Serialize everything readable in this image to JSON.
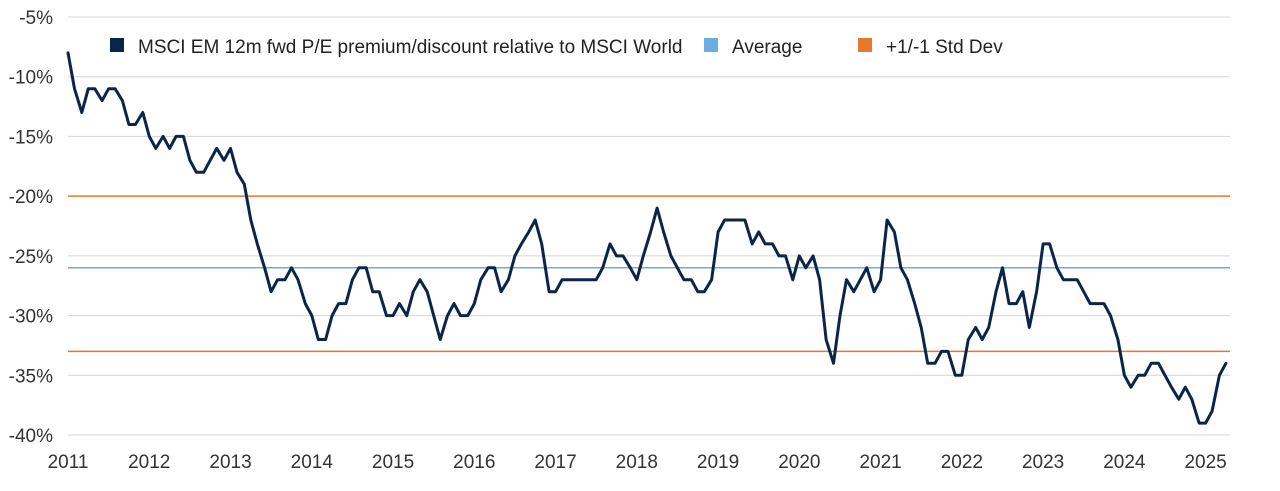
{
  "chart_data": {
    "type": "line",
    "title": "",
    "xlabel": "",
    "ylabel": "",
    "xlim": [
      2011.0,
      2025.3
    ],
    "ylim": [
      -40,
      -5
    ],
    "x_ticks": [
      "2011",
      "2012",
      "2013",
      "2014",
      "2015",
      "2016",
      "2017",
      "2018",
      "2019",
      "2020",
      "2021",
      "2022",
      "2023",
      "2024",
      "2025"
    ],
    "y_ticks": [
      "-5%",
      "-10%",
      "-15%",
      "-20%",
      "-25%",
      "-30%",
      "-35%",
      "-40%"
    ],
    "grid": "horizontal",
    "legend_position": "top",
    "series": [
      {
        "name": "MSCI EM 12m fwd P/E premium/discount relative to MSCI World",
        "color": "#0b2548",
        "x": [
          2011.0,
          2011.08,
          2011.17,
          2011.25,
          2011.33,
          2011.42,
          2011.5,
          2011.58,
          2011.67,
          2011.75,
          2011.83,
          2011.92,
          2012.0,
          2012.08,
          2012.17,
          2012.25,
          2012.33,
          2012.42,
          2012.5,
          2012.58,
          2012.67,
          2012.75,
          2012.83,
          2012.92,
          2013.0,
          2013.08,
          2013.17,
          2013.25,
          2013.33,
          2013.42,
          2013.5,
          2013.58,
          2013.67,
          2013.75,
          2013.83,
          2013.92,
          2014.0,
          2014.08,
          2014.17,
          2014.25,
          2014.33,
          2014.42,
          2014.5,
          2014.58,
          2014.67,
          2014.75,
          2014.83,
          2014.92,
          2015.0,
          2015.08,
          2015.17,
          2015.25,
          2015.33,
          2015.42,
          2015.5,
          2015.58,
          2015.67,
          2015.75,
          2015.83,
          2015.92,
          2016.0,
          2016.08,
          2016.17,
          2016.25,
          2016.33,
          2016.42,
          2016.5,
          2016.58,
          2016.67,
          2016.75,
          2016.83,
          2016.92,
          2017.0,
          2017.08,
          2017.17,
          2017.25,
          2017.33,
          2017.42,
          2017.5,
          2017.58,
          2017.67,
          2017.75,
          2017.83,
          2017.92,
          2018.0,
          2018.08,
          2018.17,
          2018.25,
          2018.33,
          2018.42,
          2018.5,
          2018.58,
          2018.67,
          2018.75,
          2018.83,
          2018.92,
          2019.0,
          2019.08,
          2019.17,
          2019.25,
          2019.33,
          2019.42,
          2019.5,
          2019.58,
          2019.67,
          2019.75,
          2019.83,
          2019.92,
          2020.0,
          2020.08,
          2020.17,
          2020.25,
          2020.33,
          2020.42,
          2020.5,
          2020.58,
          2020.67,
          2020.75,
          2020.83,
          2020.92,
          2021.0,
          2021.08,
          2021.17,
          2021.25,
          2021.33,
          2021.42,
          2021.5,
          2021.58,
          2021.67,
          2021.75,
          2021.83,
          2021.92,
          2022.0,
          2022.08,
          2022.17,
          2022.25,
          2022.33,
          2022.42,
          2022.5,
          2022.58,
          2022.67,
          2022.75,
          2022.83,
          2022.92,
          2023.0,
          2023.08,
          2023.17,
          2023.25,
          2023.33,
          2023.42,
          2023.5,
          2023.58,
          2023.67,
          2023.75,
          2023.83,
          2023.92,
          2024.0,
          2024.08,
          2024.17,
          2024.25,
          2024.33,
          2024.42,
          2024.5,
          2024.58,
          2024.67,
          2024.75,
          2024.83,
          2024.92,
          2025.0,
          2025.08,
          2025.17,
          2025.25
        ],
        "values": [
          -8,
          -11,
          -13,
          -11,
          -11,
          -12,
          -11,
          -11,
          -12,
          -14,
          -14,
          -13,
          -15,
          -16,
          -15,
          -16,
          -15,
          -15,
          -17,
          -18,
          -18,
          -17,
          -16,
          -17,
          -16,
          -18,
          -19,
          -22,
          -24,
          -26,
          -28,
          -27,
          -27,
          -26,
          -27,
          -29,
          -30,
          -32,
          -32,
          -30,
          -29,
          -29,
          -27,
          -26,
          -26,
          -28,
          -28,
          -30,
          -30,
          -29,
          -30,
          -28,
          -27,
          -28,
          -30,
          -32,
          -30,
          -29,
          -30,
          -30,
          -29,
          -27,
          -26,
          -26,
          -28,
          -27,
          -25,
          -24,
          -23,
          -22,
          -24,
          -28,
          -28,
          -27,
          -27,
          -27,
          -27,
          -27,
          -27,
          -26,
          -24,
          -25,
          -25,
          -26,
          -27,
          -25,
          -23,
          -21,
          -23,
          -25,
          -26,
          -27,
          -27,
          -28,
          -28,
          -27,
          -23,
          -22,
          -22,
          -22,
          -22,
          -24,
          -23,
          -24,
          -24,
          -25,
          -25,
          -27,
          -25,
          -26,
          -25,
          -27,
          -32,
          -34,
          -30,
          -27,
          -28,
          -27,
          -26,
          -28,
          -27,
          -22,
          -23,
          -26,
          -27,
          -29,
          -31,
          -34,
          -34,
          -33,
          -33,
          -35,
          -35,
          -32,
          -31,
          -32,
          -31,
          -28,
          -26,
          -29,
          -29,
          -28,
          -31,
          -28,
          -24,
          -24,
          -26,
          -27,
          -27,
          -27,
          -28,
          -29,
          -29,
          -29,
          -30,
          -32,
          -35,
          -36,
          -35,
          -35,
          -34,
          -34,
          -35,
          -36,
          -37,
          -36,
          -37,
          -39,
          -39,
          -38,
          -35,
          -34
        ]
      },
      {
        "name": "Average",
        "color": "#6aaee0",
        "values": [
          -26
        ]
      },
      {
        "name": "+1/-1 Std Dev",
        "color": "#e8772e",
        "values": [
          -20,
          -33
        ]
      }
    ]
  }
}
